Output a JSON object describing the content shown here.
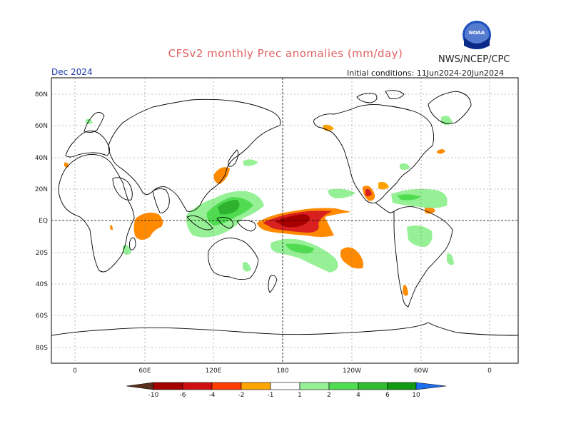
{
  "header": {
    "title": "CFSv2 monthly Prec anomalies (mm/day)",
    "organization": "NWS/NCEP/CPC",
    "valid_month": "Dec 2024",
    "initial_conditions": "Initial conditions: 11Jun2024-20Jun2024",
    "logo_text": "NOAA"
  },
  "axes": {
    "lat_labels": [
      "80N",
      "60N",
      "40N",
      "20N",
      "EQ",
      "20S",
      "40S",
      "60S",
      "80S"
    ],
    "lon_labels": [
      "0",
      "60E",
      "120E",
      "180",
      "120W",
      "60W",
      "0"
    ]
  },
  "colorbar": {
    "labels": [
      "-10",
      "-6",
      "-4",
      "-2",
      "-1",
      "1",
      "2",
      "4",
      "6",
      "10"
    ],
    "colors": [
      "#5a2e1c",
      "#a50000",
      "#d01010",
      "#ff3c00",
      "#ff8a00",
      "#ffa500",
      "#ffffff",
      "#96f096",
      "#50dc50",
      "#30bb30",
      "#1aa01a",
      "#119911",
      "#1f6ef0"
    ]
  },
  "colors": {
    "title": "#e06060",
    "valid_month": "#1a3aa8",
    "dry_dark": "#a80000",
    "dry_mid": "#d82020",
    "dry_light": "#ff6000",
    "dry_faint": "#ffa200",
    "wet_faint": "#96f096",
    "wet_light": "#50dc50",
    "wet_mid": "#2fb22f"
  }
}
